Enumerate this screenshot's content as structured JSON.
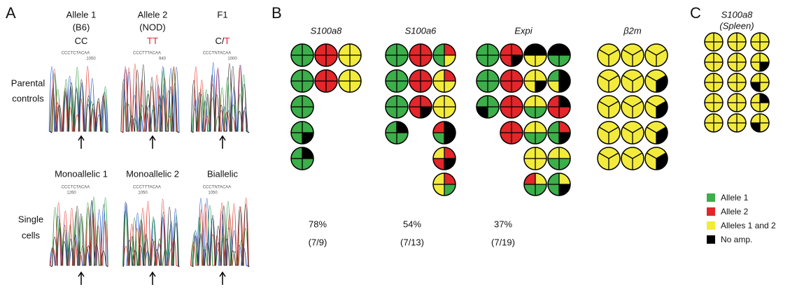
{
  "panel_a": {
    "label": "A",
    "parental": {
      "row_label": [
        "Parental",
        "controls"
      ],
      "samples": [
        {
          "title": [
            "Allele 1",
            "(B6)"
          ],
          "genotype": [
            "CC"
          ],
          "sequence": "CCCTCTACAA",
          "position": "1050"
        },
        {
          "title": [
            "Allele 2",
            "(NOD)"
          ],
          "genotype": [
            "TT"
          ],
          "sequence": "CCCTTTACAA",
          "position": "940"
        },
        {
          "title": [
            "F1"
          ],
          "genotype": [
            "C/",
            "T"
          ],
          "sequence": "CCCTNTACAA",
          "position": "1000"
        }
      ]
    },
    "single": {
      "row_label": [
        "Single",
        "cells"
      ],
      "samples": [
        {
          "title": [
            "Monoallelic 1"
          ],
          "sequence": "CCCTCTACAA",
          "position": "1260"
        },
        {
          "title": [
            "Monoallelic 2"
          ],
          "sequence": "CCCTTTACAA",
          "position": "1050"
        },
        {
          "title": [
            "Biallelic"
          ],
          "sequence": "CCCTNTACAA",
          "position": "1050"
        }
      ]
    }
  },
  "panel_b": {
    "label": "B",
    "genes": [
      {
        "name": "S100a8",
        "percent": "78%",
        "fraction": "(7/9)",
        "cells": [
          [
            [
              0,
              0,
              0,
              0
            ],
            [
              1,
              1,
              1,
              1
            ],
            [
              2,
              2,
              2,
              2
            ]
          ],
          [
            [
              0,
              0,
              0,
              0
            ],
            [
              1,
              1,
              1,
              1
            ],
            [
              2,
              2,
              2,
              2
            ]
          ],
          [
            [
              0,
              0,
              0,
              0
            ],
            null,
            null
          ],
          [
            [
              0,
              0,
              3,
              0
            ],
            null,
            null
          ],
          [
            [
              0,
              3,
              0,
              0
            ],
            null,
            null
          ]
        ]
      },
      {
        "name": "S100a6",
        "percent": "54%",
        "fraction": "(7/13)",
        "cells": [
          [
            [
              0,
              0,
              0,
              0
            ],
            [
              1,
              1,
              1,
              1
            ],
            [
              0,
              1,
              2,
              0
            ]
          ],
          [
            [
              0,
              0,
              0,
              0
            ],
            [
              1,
              1,
              1,
              1
            ],
            [
              2,
              1,
              2,
              2
            ]
          ],
          [
            [
              0,
              0,
              0,
              0
            ],
            [
              1,
              1,
              3,
              1
            ],
            [
              2,
              2,
              2,
              2
            ]
          ],
          [
            [
              0,
              3,
              0,
              0
            ],
            null,
            [
              1,
              3,
              3,
              0
            ]
          ],
          [
            null,
            null,
            [
              2,
              1,
              3,
              1
            ]
          ],
          [
            null,
            null,
            [
              2,
              1,
              0,
              2
            ]
          ]
        ]
      },
      {
        "name": "Expi",
        "percent": "37%",
        "fraction": "(7/19)",
        "cells": [
          [
            [
              0,
              0,
              0,
              0
            ],
            [
              1,
              1,
              3,
              1
            ],
            [
              3,
              3,
              2,
              2
            ],
            [
              3,
              3,
              0,
              0
            ]
          ],
          [
            [
              0,
              0,
              0,
              0
            ],
            [
              1,
              1,
              1,
              1
            ],
            [
              2,
              2,
              3,
              2
            ],
            [
              0,
              3,
              3,
              2
            ]
          ],
          [
            [
              0,
              0,
              0,
              3
            ],
            [
              1,
              1,
              1,
              1
            ],
            [
              2,
              2,
              0,
              0
            ],
            [
              1,
              3,
              1,
              1
            ]
          ],
          [
            null,
            [
              1,
              1,
              1,
              1
            ],
            [
              2,
              2,
              0,
              0
            ],
            [
              0,
              1,
              3,
              0
            ]
          ],
          [
            null,
            null,
            [
              2,
              2,
              2,
              2
            ],
            [
              2,
              2,
              0,
              0
            ]
          ],
          [
            null,
            null,
            [
              1,
              2,
              0,
              0
            ],
            [
              0,
              2,
              3,
              0
            ]
          ]
        ]
      },
      {
        "name": "β2m",
        "cells": [
          [
            [
              2,
              2,
              2
            ],
            [
              2,
              2,
              2
            ],
            [
              2,
              2,
              2
            ]
          ],
          [
            [
              2,
              2,
              2
            ],
            [
              2,
              2,
              2
            ],
            [
              2,
              3,
              2
            ]
          ],
          [
            [
              2,
              2,
              2
            ],
            [
              2,
              2,
              2
            ],
            [
              2,
              3,
              2
            ]
          ],
          [
            [
              2,
              2,
              2
            ],
            [
              2,
              2,
              2
            ],
            [
              2,
              3,
              2
            ]
          ],
          [
            [
              2,
              2,
              2
            ],
            [
              2,
              2,
              2
            ],
            [
              2,
              3,
              2
            ]
          ]
        ]
      }
    ]
  },
  "panel_c": {
    "label": "C",
    "title": [
      "S100a8",
      "(Spleen)"
    ],
    "cells": [
      [
        [
          2,
          2,
          2,
          2
        ],
        [
          2,
          2,
          2,
          2
        ],
        [
          2,
          2,
          2,
          2
        ]
      ],
      [
        [
          2,
          2,
          2,
          2
        ],
        [
          2,
          2,
          2,
          2
        ],
        [
          2,
          2,
          3,
          2
        ]
      ],
      [
        [
          2,
          2,
          2,
          2
        ],
        [
          2,
          2,
          2,
          2
        ],
        [
          2,
          2,
          2,
          3
        ]
      ],
      [
        [
          2,
          2,
          2,
          2
        ],
        [
          2,
          2,
          2,
          2
        ],
        [
          2,
          3,
          2,
          2
        ]
      ],
      [
        [
          2,
          2,
          2,
          2
        ],
        [
          2,
          2,
          2,
          2
        ],
        [
          2,
          2,
          2,
          3
        ]
      ]
    ]
  },
  "legend": [
    {
      "label": "Allele 1",
      "color": "#3cae4a"
    },
    {
      "label": "Allele 2",
      "color": "#e2262a"
    },
    {
      "label": "Alleles 1 and 2",
      "color": "#f2eb3b"
    },
    {
      "label": "No amp.",
      "color": "#000000"
    }
  ]
}
